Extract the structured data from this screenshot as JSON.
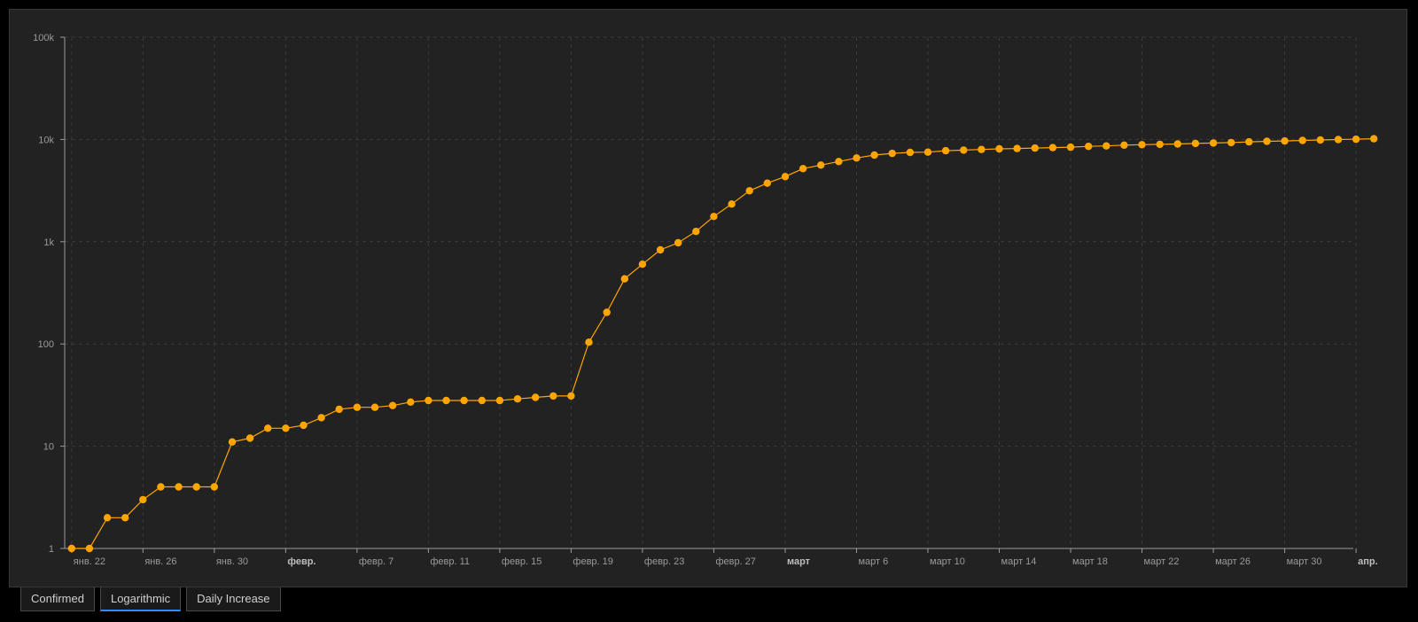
{
  "tabs": [
    {
      "label": "Confirmed",
      "active": false
    },
    {
      "label": "Logarithmic",
      "active": true
    },
    {
      "label": "Daily Increase",
      "active": false
    }
  ],
  "colors": {
    "background": "#000000",
    "panel": "#222222",
    "series": "#ffa500",
    "grid": "#3a3a3a",
    "axis": "#9a9a9a",
    "active_tab_underline": "#2b8cff"
  },
  "chart_data": {
    "type": "line",
    "title": "",
    "xlabel": "",
    "ylabel": "",
    "y_scale": "log",
    "ylim": [
      1,
      100000
    ],
    "xlim": [
      "2020-01-22",
      "2020-04-03"
    ],
    "grid": true,
    "grid_style": "dashed",
    "legend": "none",
    "y_ticks": [
      {
        "value": 1,
        "label": "1"
      },
      {
        "value": 10,
        "label": "10"
      },
      {
        "value": 100,
        "label": "100"
      },
      {
        "value": 1000,
        "label": "1k"
      },
      {
        "value": 10000,
        "label": "10k"
      },
      {
        "value": 100000,
        "label": "100k"
      }
    ],
    "x_ticks": [
      {
        "date": "2020-01-22",
        "label": "янв. 22",
        "bold": false
      },
      {
        "date": "2020-01-26",
        "label": "янв. 26",
        "bold": false
      },
      {
        "date": "2020-01-30",
        "label": "янв. 30",
        "bold": false
      },
      {
        "date": "2020-02-03",
        "label": "февр.",
        "bold": true
      },
      {
        "date": "2020-02-07",
        "label": "февр. 7",
        "bold": false
      },
      {
        "date": "2020-02-11",
        "label": "февр. 11",
        "bold": false
      },
      {
        "date": "2020-02-15",
        "label": "февр. 15",
        "bold": false
      },
      {
        "date": "2020-02-19",
        "label": "февр. 19",
        "bold": false
      },
      {
        "date": "2020-02-23",
        "label": "февр. 23",
        "bold": false
      },
      {
        "date": "2020-02-27",
        "label": "февр. 27",
        "bold": false
      },
      {
        "date": "2020-03-02",
        "label": "март",
        "bold": true
      },
      {
        "date": "2020-03-06",
        "label": "март 6",
        "bold": false
      },
      {
        "date": "2020-03-10",
        "label": "март 10",
        "bold": false
      },
      {
        "date": "2020-03-14",
        "label": "март 14",
        "bold": false
      },
      {
        "date": "2020-03-18",
        "label": "март 18",
        "bold": false
      },
      {
        "date": "2020-03-22",
        "label": "март 22",
        "bold": false
      },
      {
        "date": "2020-03-26",
        "label": "март 26",
        "bold": false
      },
      {
        "date": "2020-03-30",
        "label": "март 30",
        "bold": false
      },
      {
        "date": "2020-04-03",
        "label": "апр.",
        "bold": true
      }
    ],
    "series": [
      {
        "x": [
          "2020-01-22",
          "2020-01-23",
          "2020-01-24",
          "2020-01-25",
          "2020-01-26",
          "2020-01-27",
          "2020-01-28",
          "2020-01-29",
          "2020-01-30",
          "2020-01-31",
          "2020-02-01",
          "2020-02-02",
          "2020-02-03",
          "2020-02-04",
          "2020-02-05",
          "2020-02-06",
          "2020-02-07",
          "2020-02-08",
          "2020-02-09",
          "2020-02-10",
          "2020-02-11",
          "2020-02-12",
          "2020-02-13",
          "2020-02-14",
          "2020-02-15",
          "2020-02-16",
          "2020-02-17",
          "2020-02-18",
          "2020-02-19",
          "2020-02-20",
          "2020-02-21",
          "2020-02-22",
          "2020-02-23",
          "2020-02-24",
          "2020-02-25",
          "2020-02-26",
          "2020-02-27",
          "2020-02-28",
          "2020-02-29",
          "2020-03-01",
          "2020-03-02",
          "2020-03-03",
          "2020-03-04",
          "2020-03-05",
          "2020-03-06",
          "2020-03-07",
          "2020-03-08",
          "2020-03-09",
          "2020-03-10",
          "2020-03-11",
          "2020-03-12",
          "2020-03-13",
          "2020-03-14",
          "2020-03-15",
          "2020-03-16",
          "2020-03-17",
          "2020-03-18",
          "2020-03-19",
          "2020-03-20",
          "2020-03-21",
          "2020-03-22",
          "2020-03-23",
          "2020-03-24",
          "2020-03-25",
          "2020-03-26",
          "2020-03-27",
          "2020-03-28",
          "2020-03-29",
          "2020-03-30",
          "2020-03-31",
          "2020-04-01",
          "2020-04-02",
          "2020-04-03",
          "2020-04-04"
        ],
        "values": [
          1,
          1,
          2,
          2,
          3,
          4,
          4,
          4,
          4,
          11,
          12,
          15,
          15,
          16,
          19,
          23,
          24,
          24,
          25,
          27,
          28,
          28,
          28,
          28,
          28,
          29,
          30,
          31,
          31,
          104,
          204,
          433,
          602,
          833,
          977,
          1261,
          1766,
          2337,
          3150,
          3736,
          4335,
          5186,
          5621,
          6088,
          6593,
          7041,
          7314,
          7478,
          7513,
          7755,
          7869,
          7979,
          8086,
          8162,
          8236,
          8320,
          8413,
          8565,
          8652,
          8799,
          8897,
          8961,
          9037,
          9137,
          9241,
          9332,
          9478,
          9583,
          9661,
          9786,
          9887,
          9976,
          10062,
          10156
        ]
      }
    ]
  }
}
